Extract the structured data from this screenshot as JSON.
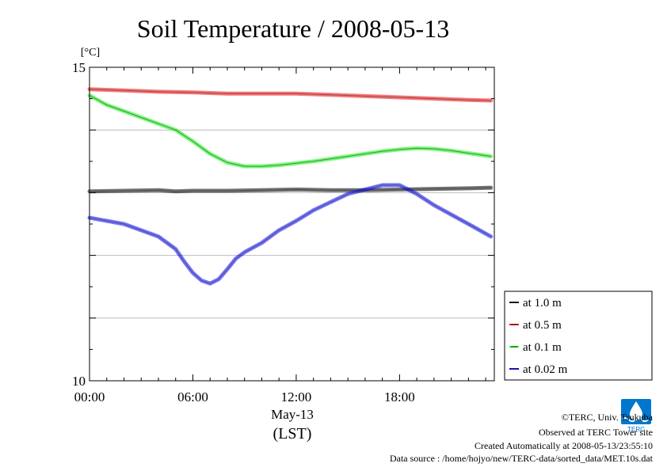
{
  "chart_data": {
    "type": "line",
    "title": "Soil Temperature / 2008-05-13",
    "ylabel": "[°C]",
    "xlabel_date": "May-13",
    "xlabel": "(LST)",
    "xlim": [
      0,
      23.5
    ],
    "ylim": [
      10,
      15
    ],
    "x_ticks": [
      0,
      6,
      12,
      18
    ],
    "x_tick_labels": [
      "00:00",
      "06:00",
      "12:00",
      "18:00"
    ],
    "y_ticks": [
      10,
      15
    ],
    "y_tick_labels": [
      "10",
      "15"
    ],
    "grid": "horizontal",
    "legend_position": "bottom-right",
    "series": [
      {
        "name": "at 1.0 m",
        "color": "#000000",
        "x": [
          0,
          2,
          4,
          5,
          6,
          8,
          10,
          12,
          14,
          16,
          18,
          20,
          22,
          23.3
        ],
        "y": [
          13.02,
          13.03,
          13.04,
          13.02,
          13.03,
          13.03,
          13.04,
          13.05,
          13.04,
          13.04,
          13.05,
          13.06,
          13.07,
          13.08
        ]
      },
      {
        "name": "at 0.5 m",
        "color": "#ff0000",
        "x": [
          0,
          2,
          4,
          6,
          8,
          10,
          12,
          14,
          16,
          18,
          20,
          22,
          23.3
        ],
        "y": [
          14.65,
          14.63,
          14.61,
          14.6,
          14.58,
          14.58,
          14.58,
          14.56,
          14.54,
          14.52,
          14.5,
          14.48,
          14.47
        ]
      },
      {
        "name": "at 0.1 m",
        "color": "#00ff00",
        "x": [
          0,
          1,
          2,
          3,
          4,
          5,
          6,
          7,
          8,
          9,
          10,
          11,
          12,
          13,
          14,
          15,
          16,
          17,
          18,
          19,
          20,
          21,
          22,
          23.3
        ],
        "y": [
          14.55,
          14.4,
          14.3,
          14.2,
          14.1,
          14.0,
          13.82,
          13.62,
          13.48,
          13.42,
          13.42,
          13.44,
          13.47,
          13.5,
          13.54,
          13.58,
          13.62,
          13.66,
          13.69,
          13.71,
          13.7,
          13.67,
          13.63,
          13.58
        ]
      },
      {
        "name": "at 0.02 m",
        "color": "#0000ff",
        "x": [
          0,
          1,
          2,
          3,
          4,
          5,
          5.5,
          6,
          6.5,
          7,
          7.5,
          8,
          8.5,
          9,
          10,
          11,
          12,
          13,
          14,
          15,
          16,
          17,
          18,
          19,
          20,
          21,
          22,
          23.3
        ],
        "y": [
          12.6,
          12.55,
          12.5,
          12.4,
          12.3,
          12.1,
          11.9,
          11.72,
          11.6,
          11.55,
          11.62,
          11.78,
          11.95,
          12.05,
          12.2,
          12.4,
          12.55,
          12.72,
          12.85,
          12.98,
          13.05,
          13.12,
          13.12,
          12.98,
          12.8,
          12.65,
          12.5,
          12.3
        ]
      }
    ]
  },
  "footer": {
    "copyright": "©TERC, Univ. Tsukuba",
    "observed": "Observed at TERC Tower site",
    "created": "Created Automatically at 2008-05-13/23:55:10",
    "source": "Data source : /home/hojyo/new/TERC-data/sorted_data/MET.10s.dat"
  },
  "logo": {
    "text": "TERC",
    "color": "#0077cc"
  }
}
